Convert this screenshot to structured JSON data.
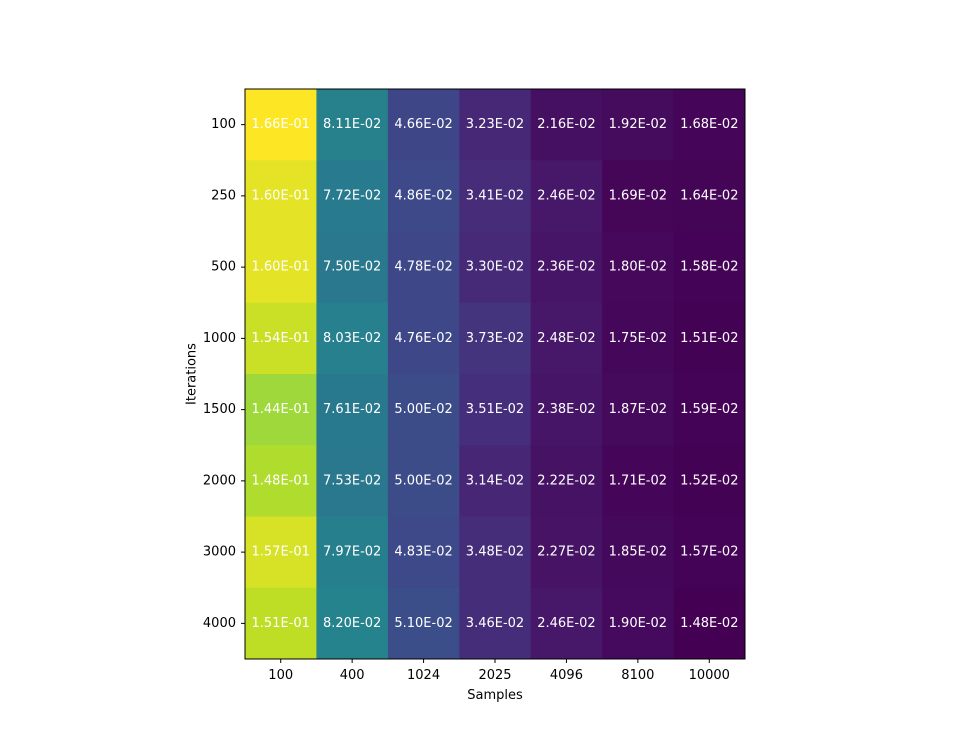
{
  "chart_data": {
    "type": "heatmap",
    "title": "",
    "xlabel": "Samples",
    "ylabel": "Iterations",
    "grid": false,
    "colormap": "viridis",
    "x_categories": [
      "100",
      "400",
      "1024",
      "2025",
      "4096",
      "8100",
      "10000"
    ],
    "y_categories": [
      "100",
      "250",
      "500",
      "1000",
      "1500",
      "2000",
      "3000",
      "4000"
    ],
    "values": [
      [
        0.166,
        0.0811,
        0.0466,
        0.0323,
        0.0216,
        0.0192,
        0.0168
      ],
      [
        0.16,
        0.0772,
        0.0486,
        0.0341,
        0.0246,
        0.0169,
        0.0164
      ],
      [
        0.16,
        0.075,
        0.0478,
        0.033,
        0.0236,
        0.018,
        0.0158
      ],
      [
        0.154,
        0.0803,
        0.0476,
        0.0373,
        0.0248,
        0.0175,
        0.0151
      ],
      [
        0.144,
        0.0761,
        0.05,
        0.0351,
        0.0238,
        0.0187,
        0.0159
      ],
      [
        0.148,
        0.0753,
        0.05,
        0.0314,
        0.0222,
        0.0171,
        0.0152
      ],
      [
        0.157,
        0.0797,
        0.0483,
        0.0348,
        0.0227,
        0.0185,
        0.0157
      ],
      [
        0.151,
        0.082,
        0.051,
        0.0346,
        0.0246,
        0.019,
        0.0148
      ]
    ],
    "cell_labels": [
      [
        "1.66E-01",
        "8.11E-02",
        "4.66E-02",
        "3.23E-02",
        "2.16E-02",
        "1.92E-02",
        "1.68E-02"
      ],
      [
        "1.60E-01",
        "7.72E-02",
        "4.86E-02",
        "3.41E-02",
        "2.46E-02",
        "1.69E-02",
        "1.64E-02"
      ],
      [
        "1.60E-01",
        "7.50E-02",
        "4.78E-02",
        "3.30E-02",
        "2.36E-02",
        "1.80E-02",
        "1.58E-02"
      ],
      [
        "1.54E-01",
        "8.03E-02",
        "4.76E-02",
        "3.73E-02",
        "2.48E-02",
        "1.75E-02",
        "1.51E-02"
      ],
      [
        "1.44E-01",
        "7.61E-02",
        "5.00E-02",
        "3.51E-02",
        "2.38E-02",
        "1.87E-02",
        "1.59E-02"
      ],
      [
        "1.48E-01",
        "7.53E-02",
        "5.00E-02",
        "3.14E-02",
        "2.22E-02",
        "1.71E-02",
        "1.52E-02"
      ],
      [
        "1.57E-01",
        "7.97E-02",
        "4.83E-02",
        "3.48E-02",
        "2.27E-02",
        "1.85E-02",
        "1.57E-02"
      ],
      [
        "1.51E-01",
        "8.20E-02",
        "5.10E-02",
        "3.46E-02",
        "2.46E-02",
        "1.90E-02",
        "1.48E-02"
      ]
    ]
  }
}
